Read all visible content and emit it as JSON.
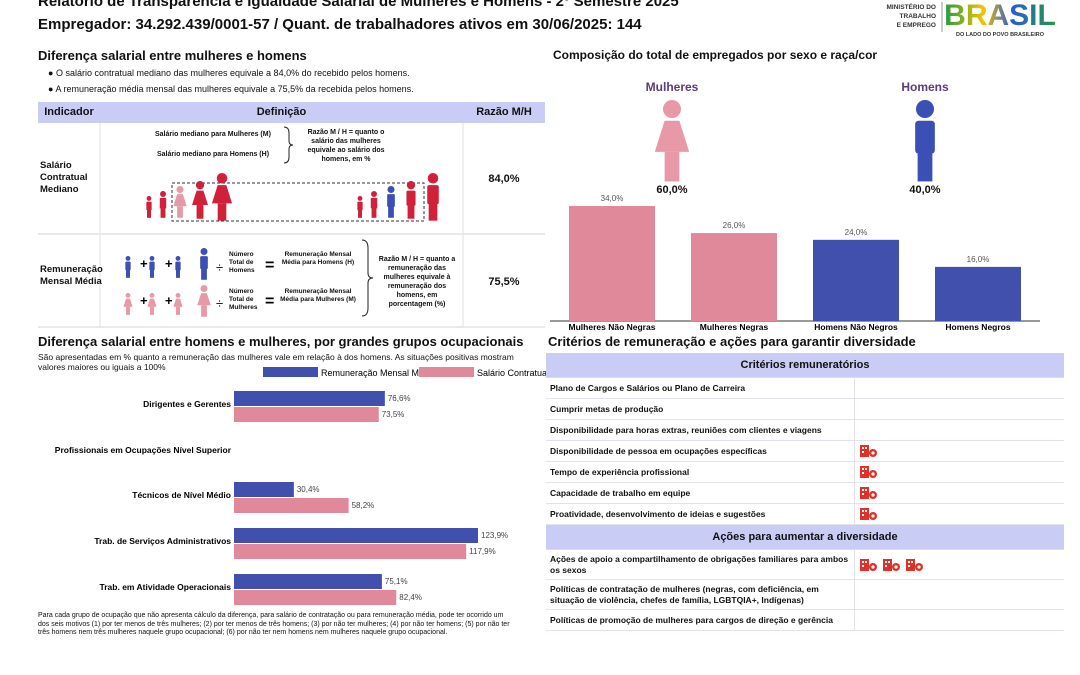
{
  "header": {
    "title": "Relatório de Transparência e Igualdade Salarial de Mulheres e Homens - 2º Semestre 2025",
    "subtitle": "Empregador: 34.292.439/0001-57 / Quant. de trabalhadores ativos em 30/06/2025: 144",
    "logo": {
      "ministry_lines": [
        "MINISTÉRIO DO",
        "TRABALHO",
        "E EMPREGO"
      ],
      "brand": "BRASIL",
      "tagline": "DO LADO DO POVO BRASILEIRO"
    }
  },
  "salary_gap": {
    "title": "Diferença salarial entre mulheres e homens",
    "bullets": [
      "O salário contratual mediano das mulheres equivale a 84,0% do recebido pelos homens.",
      "A remuneração média mensal das mulheres equivale a 75,5% da recebida pelos homens."
    ],
    "table": {
      "headers": [
        "Indicador",
        "Definição",
        "Razão M/H"
      ],
      "rows": [
        {
          "indicator": "Salário Contratual Mediano",
          "definition": {
            "women": "Salário mediano para Mulheres (M)",
            "men": "Salário mediano para Homens (H)",
            "ratio": "Razão M / H = quanto o salário das mulheres equivale ao salário dos homens, em %"
          },
          "value": "84,0%"
        },
        {
          "indicator": "Remuneração Mensal Média",
          "definition": {
            "men_count": "Número Total de Homens",
            "men": "Remuneração Mensal Média para Homens (H)",
            "women_count": "Número Total de Mulheres",
            "women": "Remuneração Mensal Média para Mulheres (M)",
            "ratio": "Razão M / H = quanto a remuneração das mulheres equivale à remuneração dos homens, em porcentagem (%)"
          },
          "value": "75,5%"
        }
      ]
    }
  },
  "sex_share": {
    "labels": [
      "Mulheres",
      "Homens"
    ],
    "shares": [
      "60,0%",
      "40,0%"
    ]
  },
  "criteria": {
    "title": "Critérios de remuneração e ações para garantir diversidade",
    "sections": [
      {
        "heading": "Critérios remuneratórios",
        "items": [
          {
            "text": "Plano de Cargos e Salários ou Plano de Carreira",
            "icons": 0
          },
          {
            "text": "Cumprir metas de produção",
            "icons": 0
          },
          {
            "text": "Disponibilidade para horas extras, reuniões com clientes e viagens",
            "icons": 0
          },
          {
            "text": "Disponibilidade de pessoa em ocupações específicas",
            "icons": 1
          },
          {
            "text": "Tempo de experiência profissional",
            "icons": 1
          },
          {
            "text": "Capacidade de trabalho em equipe",
            "icons": 1
          },
          {
            "text": "Proatividade, desenvolvimento de ideias e sugestões",
            "icons": 1
          }
        ]
      },
      {
        "heading": "Ações para aumentar a diversidade",
        "items": [
          {
            "text": "Ações de apoio a compartilhamento de obrigações familiares para ambos os sexos",
            "icons": 3
          },
          {
            "text": "Políticas de contratação de mulheres (negras, com deficiência, em situação de violência, chefes de família, LGBTQIA+, Indígenas)",
            "icons": 0
          },
          {
            "text": "Políticas de promoção de mulheres para cargos de direção e gerência",
            "icons": 0
          }
        ]
      }
    ]
  },
  "chart_data": [
    {
      "type": "bar",
      "title": "Composição do total de empregados por sexo e raça/cor",
      "categories": [
        "Mulheres Não Negras",
        "Mulheres Negras",
        "Homens Não Negros",
        "Homens Negros"
      ],
      "values": [
        34.0,
        26.0,
        24.0,
        16.0
      ],
      "value_labels": [
        "34,0%",
        "26,0%",
        "24,0%",
        "16,0%"
      ],
      "colors": [
        "#e0899b",
        "#e0899b",
        "#4150ad",
        "#4150ad"
      ]
    },
    {
      "type": "hbar",
      "title": "Diferença salarial entre homens e mulheres, por grandes grupos ocupacionais",
      "subtitle": "São apresentadas em % quanto a remuneração das mulheres vale em relação à dos homens. As situações positivas mostram valores maiores ou iguais a 100%",
      "categories": [
        "Dirigentes e Gerentes",
        "Profissionais em Ocupações Nível Superior",
        "Técnicos de Nível Médio",
        "Trab. de Serviços Administrativos",
        "Trab. em Atividade Operacionais"
      ],
      "series": [
        {
          "name": "Remuneração Mensal Média",
          "color": "#4150ad",
          "values": [
            76.6,
            null,
            30.4,
            123.9,
            75.1
          ],
          "value_labels": [
            "76,6%",
            null,
            "30,4%",
            "123,9%",
            "75,1%"
          ]
        },
        {
          "name": "Salário Contratual Mediano",
          "color": "#e0899b",
          "values": [
            73.5,
            null,
            58.2,
            117.9,
            82.4
          ],
          "value_labels": [
            "73,5%",
            null,
            "58,2%",
            "117,9%",
            "82,4%"
          ]
        }
      ],
      "legend": "top",
      "note": "Para cada grupo de ocupação que não apresenta cálculo da diferença, para salário de contratação ou para remuneração média, pode ter ocorrido um dos seis motivos (1) por ter menos de três mulheres; (2) por ter menos de três homens; (3) por não ter mulheres; (4) por não ter homens; (5) por não ter três homens nem três mulheres naquele grupo ocupacional; (6) por não ter nem homens nem mulheres naquele grupo ocupacional."
    }
  ]
}
